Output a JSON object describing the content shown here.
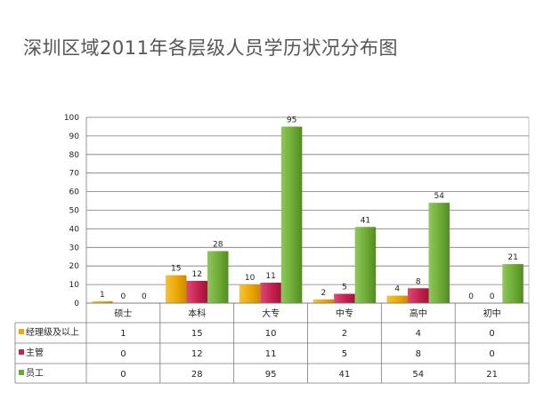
{
  "chart_data": {
    "type": "bar",
    "title": "深圳区域2011年各层级人员学历状况分布图",
    "categories": [
      "硕士",
      "本科",
      "大专",
      "中专",
      "高中",
      "初中"
    ],
    "series": [
      {
        "name": "经理级及以上",
        "color": "#f0a800",
        "values": [
          1,
          15,
          10,
          2,
          4,
          0
        ]
      },
      {
        "name": "主管",
        "color": "#c8204f",
        "values": [
          0,
          12,
          11,
          5,
          8,
          0
        ]
      },
      {
        "name": "员工",
        "color": "#6aa832",
        "values": [
          0,
          28,
          95,
          41,
          54,
          21
        ]
      }
    ],
    "ylim": [
      0,
      100
    ],
    "yticks": [
      0,
      10,
      20,
      30,
      40,
      50,
      60,
      70,
      80,
      90,
      100
    ],
    "grid": true,
    "data_table": true
  }
}
